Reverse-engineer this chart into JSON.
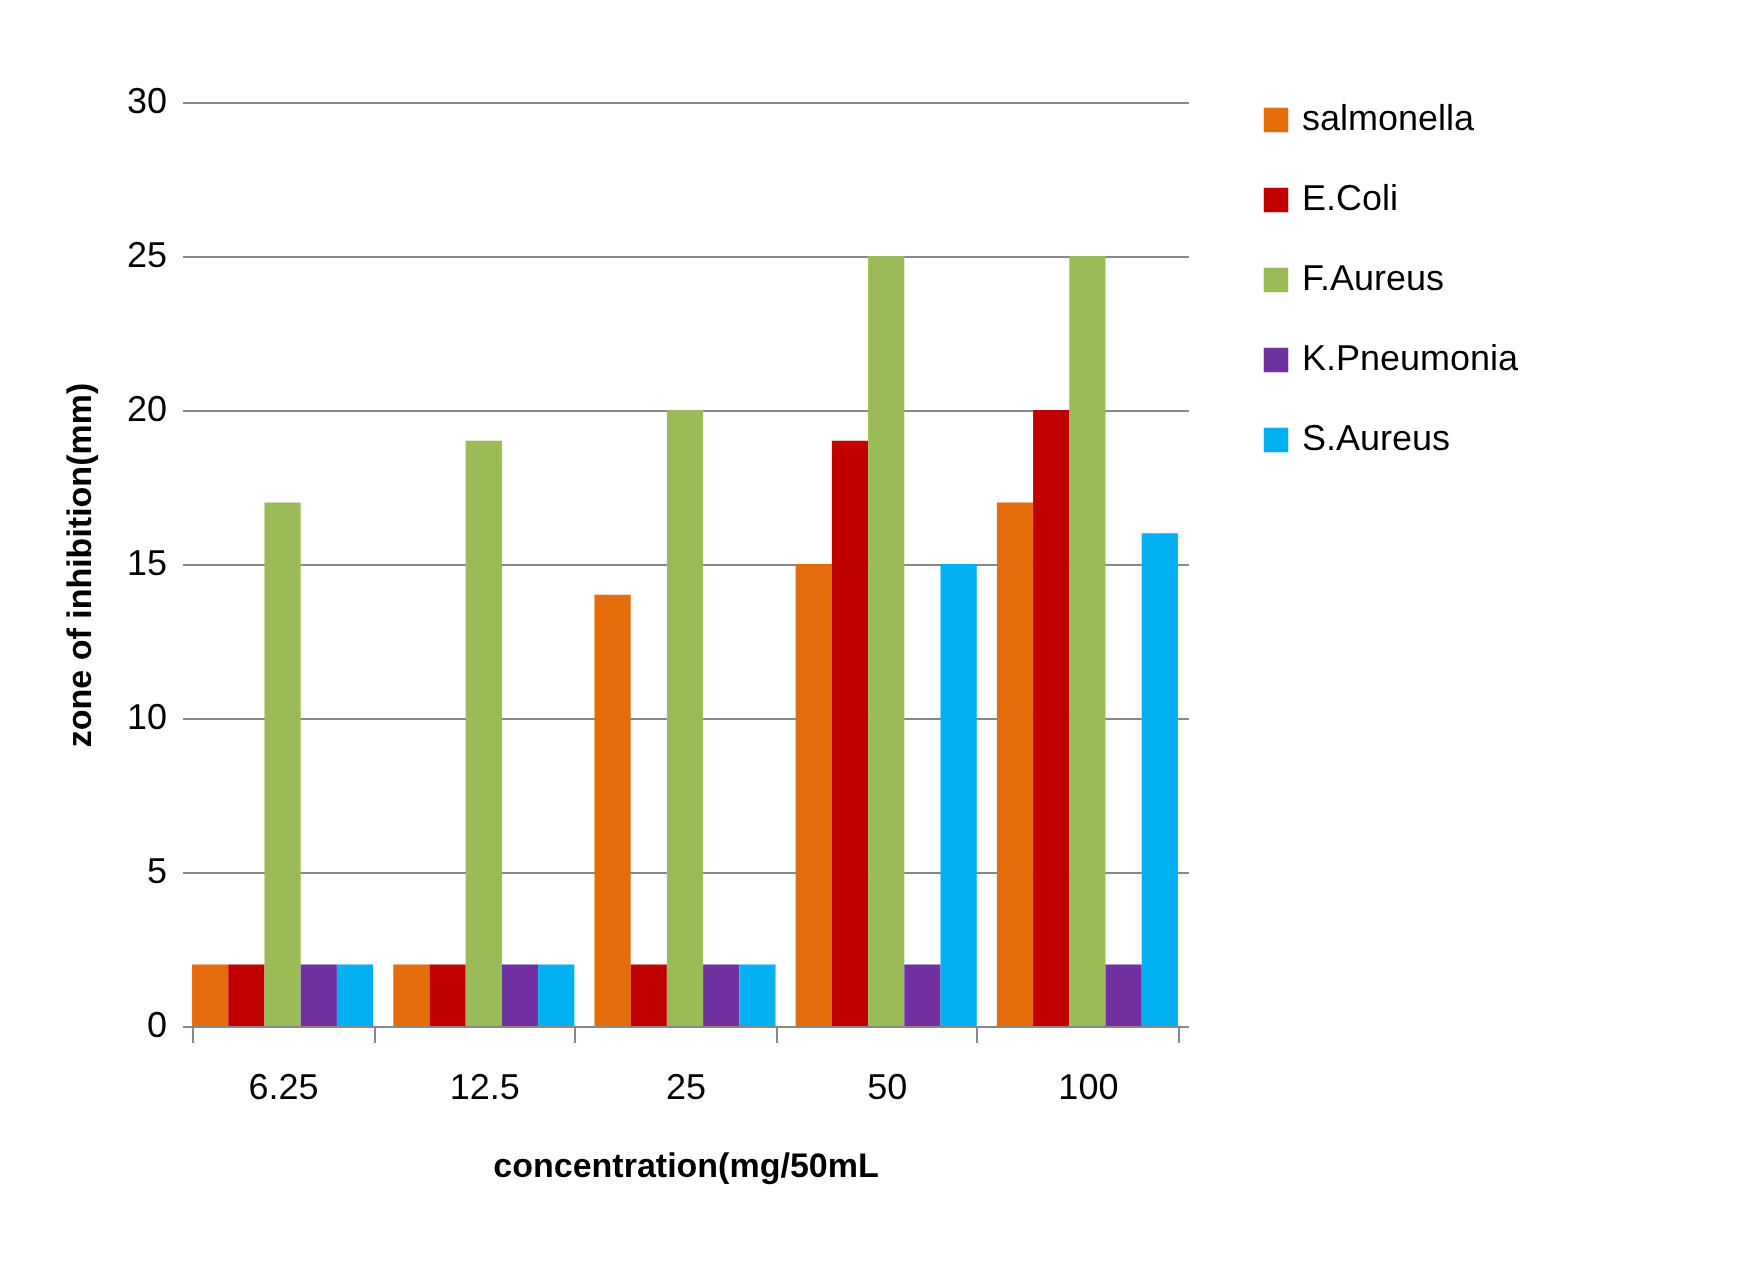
{
  "chart_data": {
    "type": "bar",
    "xlabel": "concentration(mg/50mL",
    "ylabel": "zone of inhibition(mm)",
    "categories": [
      "6.25",
      "12.5",
      "25",
      "50",
      "100"
    ],
    "series": [
      {
        "name": "salmonella",
        "color": "#e46c0a",
        "values": [
          2,
          2,
          14,
          15,
          17
        ]
      },
      {
        "name": "E.Coli",
        "color": "#c00000",
        "values": [
          2,
          2,
          2,
          19,
          20
        ]
      },
      {
        "name": "F.Aureus",
        "color": "#9bbb59",
        "values": [
          17,
          19,
          20,
          25,
          25
        ]
      },
      {
        "name": "K.Pneumonia",
        "color": "#7030a0",
        "values": [
          2,
          2,
          2,
          2,
          2
        ]
      },
      {
        "name": "S.Aureus",
        "color": "#00b0f0",
        "values": [
          2,
          2,
          2,
          15,
          16
        ]
      }
    ],
    "ylim": [
      0,
      30
    ],
    "yticks": [
      0,
      5,
      10,
      15,
      20,
      25,
      30
    ],
    "grid": "y",
    "legend": "right"
  }
}
